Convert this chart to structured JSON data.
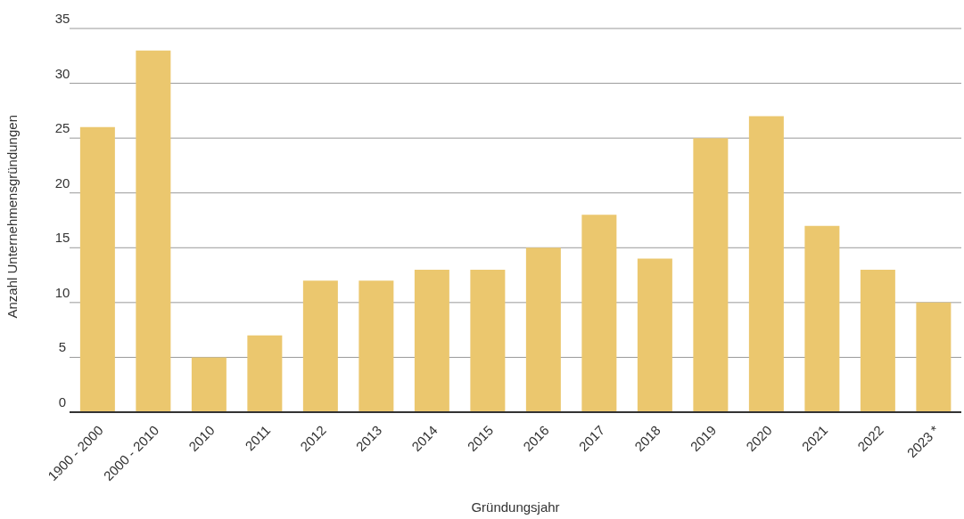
{
  "chart_data": {
    "type": "bar",
    "xlabel": "Gründungsjahr",
    "ylabel": "Anzahl Unternehmensgründungen",
    "categories": [
      "1900 - 2000",
      "2000 - 2010",
      "2010",
      "2011",
      "2012",
      "2013",
      "2014",
      "2015",
      "2016",
      "2017",
      "2018",
      "2019",
      "2020",
      "2021",
      "2022",
      "2023 *"
    ],
    "values": [
      26,
      33,
      5,
      7,
      12,
      12,
      13,
      13,
      15,
      18,
      14,
      25,
      27,
      17,
      13,
      10
    ],
    "color": "#ebc76e",
    "ylim": [
      0,
      35
    ],
    "yticks": [
      0,
      5,
      10,
      15,
      20,
      25,
      30,
      35
    ],
    "grid": "y",
    "legend": false
  }
}
